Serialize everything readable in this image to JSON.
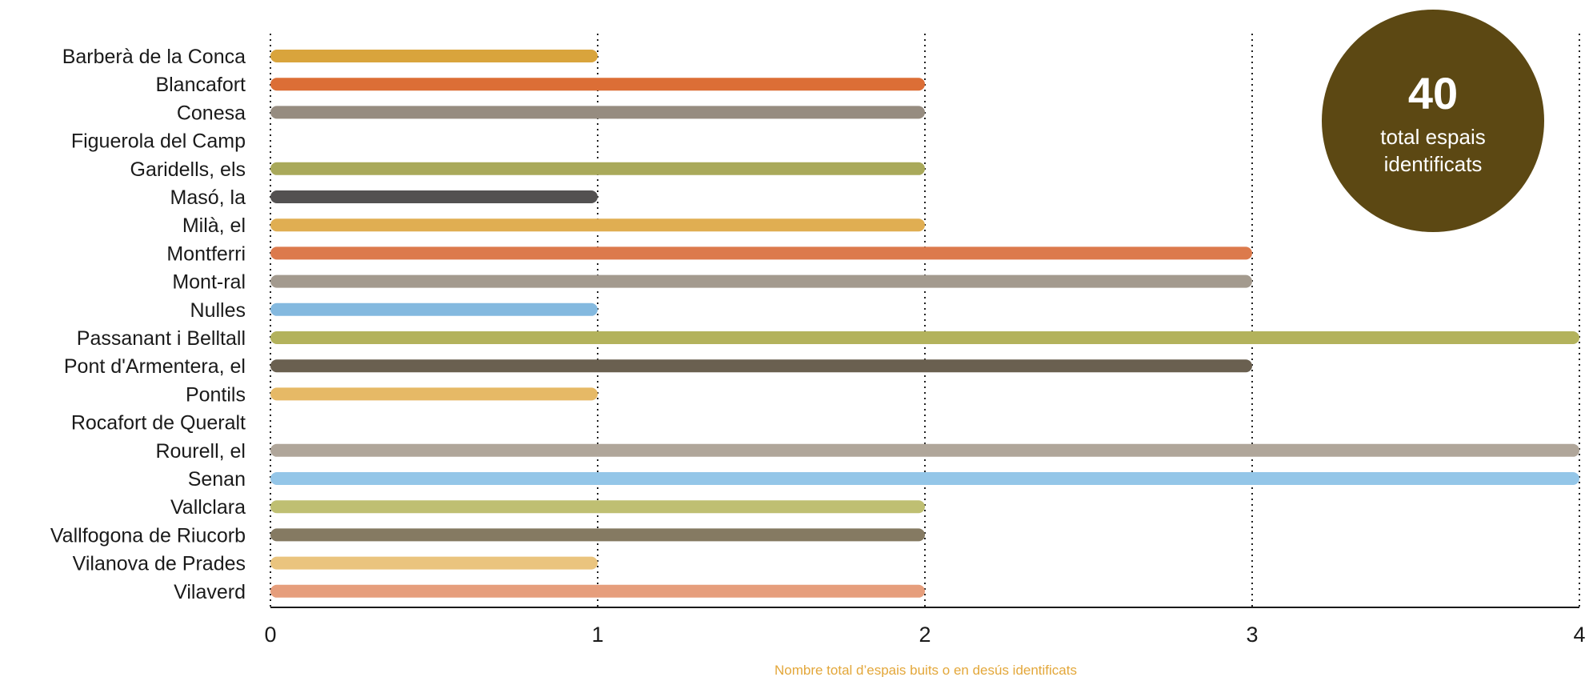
{
  "chart_data": {
    "type": "bar",
    "orientation": "horizontal",
    "categories": [
      "Barberà de la Conca",
      "Blancafort",
      "Conesa",
      "Figuerola del Camp",
      "Garidells, els",
      "Masó, la",
      "Milà, el",
      "Montferri",
      "Mont-ral",
      "Nulles",
      "Passanant i Belltall",
      "Pont d'Armentera, el",
      "Pontils",
      "Rocafort de Queralt",
      "Rourell, el",
      "Senan",
      "Vallclara",
      "Vallfogona de Riucorb",
      "Vilanova de Prades",
      "Vilaverd"
    ],
    "values": [
      1,
      2,
      2,
      0,
      2,
      1,
      2,
      3,
      3,
      1,
      4,
      3,
      1,
      0,
      4,
      4,
      2,
      2,
      1,
      2
    ],
    "colors": [
      "#D9A43C",
      "#DC6E36",
      "#968C80",
      "#A9A95A",
      "#A9A95A",
      "#535151",
      "#E0AE52",
      "#DC7A4C",
      "#A39A8E",
      "#84B9DF",
      "#B3B25C",
      "#6A6050",
      "#E6B966",
      "#B9B1A8",
      "#B0A69A",
      "#94C6E8",
      "#BFBF72",
      "#857A62",
      "#EAC47E",
      "#E69E7C"
    ],
    "xlabel": "Nombre total d’espais buits o en desús identificats",
    "ylabel": "",
    "xlim": [
      0,
      4
    ],
    "xticks": [
      "0",
      "1",
      "2",
      "3",
      "4"
    ],
    "grid": "vertical dotted",
    "axis_title_color": "#E3A73A"
  },
  "badge": {
    "number": "40",
    "line1": "total espais",
    "line2": "identificats",
    "color": "#5C4813"
  }
}
